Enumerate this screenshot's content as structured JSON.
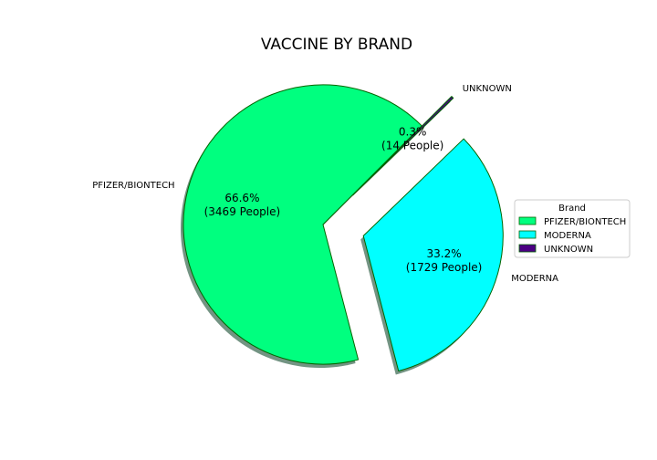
{
  "chart_data": {
    "type": "pie",
    "title": "VACCINE BY BRAND",
    "categories": [
      "PFIZER/BIONTECH",
      "MODERNA",
      "UNKNOWN"
    ],
    "values": [
      3469,
      1729,
      14
    ],
    "percent_labels": [
      "66.6%",
      "33.2%",
      "0.3%"
    ],
    "count_labels": [
      "(3469 People)",
      "(1729 People)",
      "(14 People)"
    ],
    "colors": [
      "#00ff7f",
      "#00ffff",
      "#4b0082"
    ],
    "edge_color": "#006400",
    "start_angle_deg": 45,
    "exploded": [
      false,
      true,
      true
    ],
    "shadow": true,
    "legend": {
      "title": "Brand",
      "placement": "center-right",
      "entries": [
        "PFIZER/BIONTECH",
        "MODERNA",
        "UNKNOWN"
      ]
    }
  }
}
